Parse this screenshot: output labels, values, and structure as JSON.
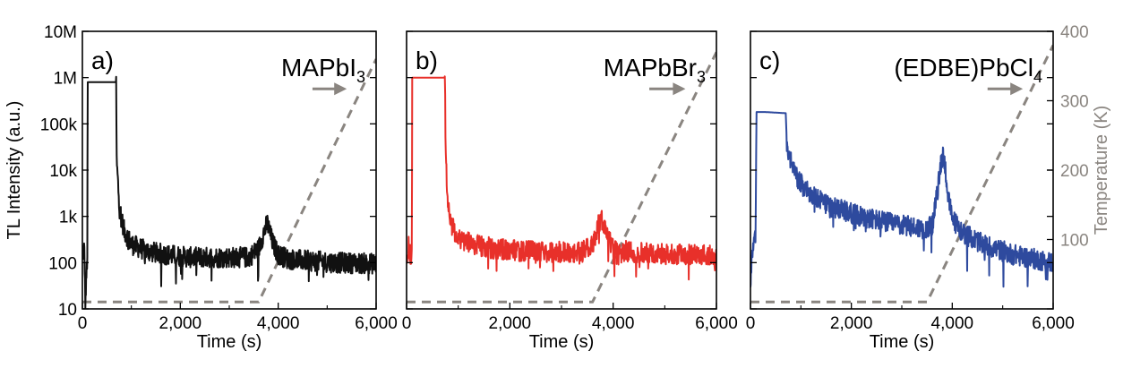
{
  "chart_data": {
    "type": "line",
    "shared": {
      "xlim": [
        0,
        6000
      ],
      "xticks": [
        "0",
        "2,000",
        "4,000",
        "6,000"
      ],
      "xlabel": "Time (s)",
      "ylabel": "TL Intensity (a.u.)",
      "yscale": "log",
      "ylim": [
        10,
        10000000
      ],
      "yticks": [
        "10",
        "100",
        "1k",
        "10k",
        "100k",
        "1M",
        "10M"
      ],
      "y2label": "Temperature (K)",
      "y2lim": [
        0,
        400
      ],
      "y2ticks": [
        "100",
        "200",
        "300",
        "400"
      ],
      "temperature_color": "#8a8580",
      "arrow_label": "→"
    },
    "panels": [
      {
        "tag": "a)",
        "compound": {
          "base": "MAPbI",
          "sub": "3",
          "tail": ""
        },
        "color": "#111111",
        "series": {
          "name": "TL",
          "x": [
            0,
            40,
            60,
            100,
            110,
            300,
            690,
            700,
            760,
            850,
            1000,
            1300,
            1700,
            2200,
            2800,
            3400,
            3600,
            3720,
            3780,
            3840,
            3900,
            4000,
            4200,
            4600,
            5200,
            6000
          ],
          "y": [
            150,
            200,
            12,
            150,
            800000,
            800000,
            800000,
            15000,
            1500,
            500,
            250,
            180,
            150,
            130,
            130,
            130,
            200,
            500,
            700,
            400,
            250,
            150,
            120,
            110,
            100,
            95
          ]
        },
        "temperature": {
          "x": [
            0,
            3600,
            6000
          ],
          "y": [
            10,
            10,
            360
          ]
        }
      },
      {
        "tag": "b)",
        "compound": {
          "base": "MAPbBr",
          "sub": "3",
          "tail": ""
        },
        "color": "#e8302a",
        "series": {
          "name": "TL",
          "x": [
            0,
            40,
            80,
            100,
            110,
            300,
            740,
            760,
            800,
            880,
            1000,
            1300,
            1700,
            2200,
            2800,
            3400,
            3600,
            3720,
            3780,
            3840,
            3900,
            4000,
            4200,
            4600,
            5200,
            6000
          ],
          "y": [
            80,
            300,
            120,
            150,
            1000000,
            1000000,
            1000000,
            20000,
            2000,
            600,
            350,
            250,
            200,
            180,
            170,
            170,
            250,
            700,
            900,
            500,
            350,
            220,
            180,
            160,
            150,
            150
          ]
        },
        "temperature": {
          "x": [
            0,
            3600,
            6000
          ],
          "y": [
            10,
            10,
            370
          ]
        }
      },
      {
        "tag": "c)",
        "compound": {
          "base": "(EDBE)PbCl",
          "sub": "4",
          "tail": ""
        },
        "color": "#2e4a9e",
        "series": {
          "name": "TL",
          "x": [
            0,
            40,
            80,
            100,
            120,
            300,
            700,
            720,
            760,
            850,
            1000,
            1300,
            1700,
            2200,
            2800,
            3400,
            3600,
            3700,
            3780,
            3820,
            3860,
            3920,
            4000,
            4200,
            4600,
            5200,
            6000
          ],
          "y": [
            40,
            200,
            300,
            400,
            180000,
            180000,
            170000,
            40000,
            20000,
            10000,
            5000,
            2500,
            1500,
            1000,
            700,
            550,
            600,
            3000,
            15000,
            22000,
            12000,
            2500,
            900,
            450,
            250,
            150,
            100
          ]
        },
        "temperature": {
          "x": [
            0,
            3500,
            6000
          ],
          "y": [
            10,
            10,
            380
          ]
        }
      }
    ]
  }
}
